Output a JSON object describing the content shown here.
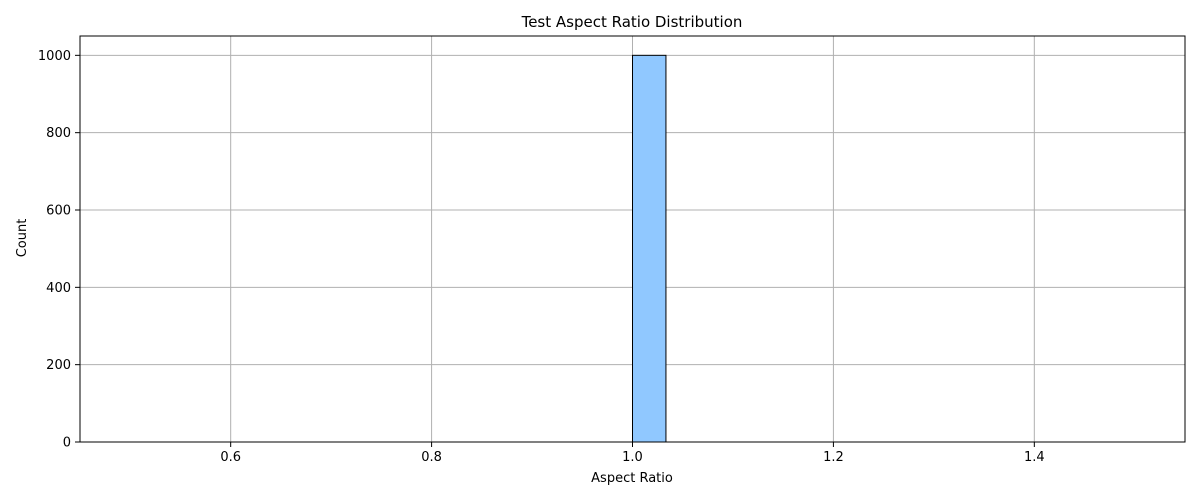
{
  "chart_data": {
    "type": "bar",
    "title": "Test Aspect Ratio Distribution",
    "xlabel": "Aspect Ratio",
    "ylabel": "Count",
    "xlim": [
      0.45,
      1.55
    ],
    "ylim": [
      0,
      1050
    ],
    "xticks": [
      0.6,
      0.8,
      1.0,
      1.2,
      1.4
    ],
    "xtick_labels": [
      "0.6",
      "0.8",
      "1.0",
      "1.2",
      "1.4"
    ],
    "yticks": [
      0,
      200,
      400,
      600,
      800,
      1000
    ],
    "ytick_labels": [
      "0",
      "200",
      "400",
      "600",
      "800",
      "1000"
    ],
    "grid": true,
    "bins": {
      "start": 0.5,
      "end": 1.5,
      "width": 0.0333,
      "count": 30
    },
    "bars": [
      {
        "x0": 1.0,
        "x1": 1.0333,
        "value": 1000
      }
    ],
    "colors": {
      "bar_fill": "#90c8ff",
      "bar_edge": "#000000",
      "grid": "#b0b0b0",
      "axis": "#000000"
    }
  }
}
